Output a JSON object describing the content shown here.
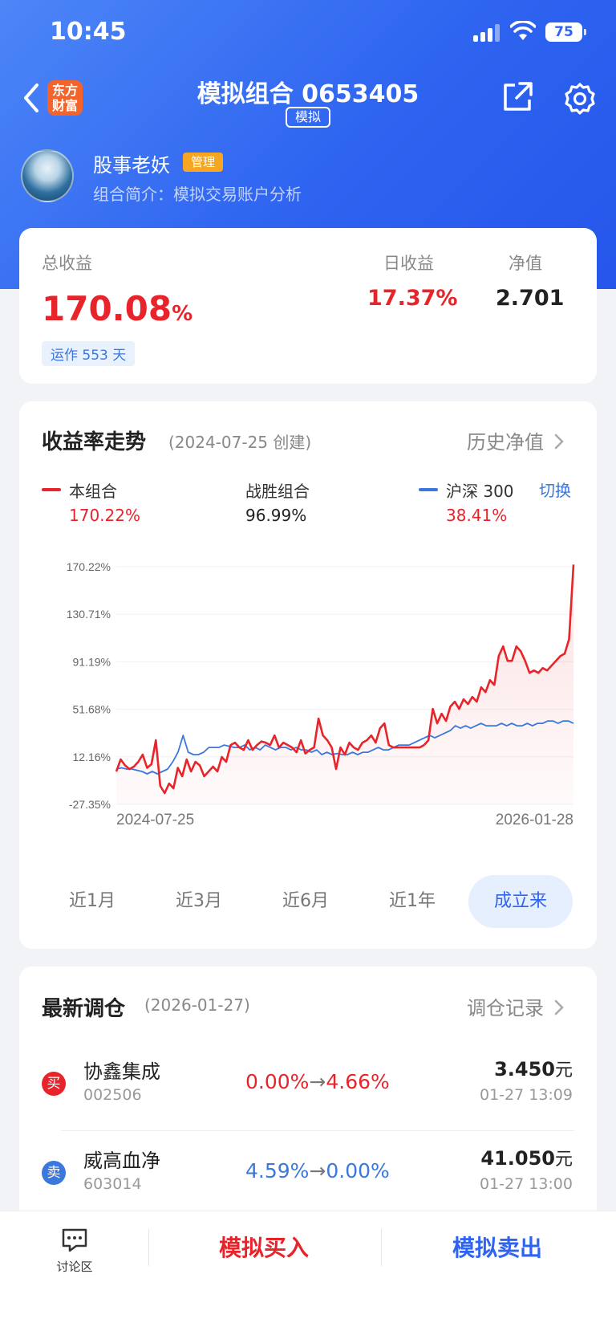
{
  "status_bar": {
    "time": "10:45",
    "battery": "75"
  },
  "nav": {
    "logo_line1": "东方",
    "logo_line2": "财富",
    "title": "模拟组合 0653405",
    "badge": "模拟"
  },
  "user": {
    "name": "股事老妖",
    "role_tag": "管理",
    "desc": "组合简介：模拟交易账户分析"
  },
  "summary": {
    "total_label": "总收益",
    "total_value": "170.08",
    "total_unit": "%",
    "run_days": "运作 553 天",
    "daily_label": "日收益",
    "daily_value": "17.37%",
    "nav_label": "净值",
    "nav_value": "2.701"
  },
  "trend": {
    "title": "收益率走势",
    "created": "(2024-07-25 创建)",
    "history_link": "历史净值",
    "switch": "切换",
    "legend": [
      {
        "name": "本组合",
        "value": "170.22%",
        "color": "#e8242b"
      },
      {
        "name": "战胜组合",
        "value": "96.99%",
        "color": "#222222"
      },
      {
        "name": "沪深 300",
        "value": "38.41%",
        "color": "#e8242b",
        "line_color": "#3a78dc"
      }
    ],
    "periods": [
      "近1月",
      "近3月",
      "近6月",
      "近1年",
      "成立来"
    ],
    "active_period": "成立来"
  },
  "chart_data": {
    "type": "line",
    "x_start": "2024-07-25",
    "x_end": "2026-01-28",
    "y_ticks": [
      "170.22%",
      "130.71%",
      "91.19%",
      "51.68%",
      "12.16%",
      "-27.35%"
    ],
    "ylim": [
      -27.35,
      170.22
    ],
    "grid": true,
    "series": [
      {
        "name": "本组合",
        "color": "#e8242b",
        "fill": true,
        "values": [
          0,
          10,
          5,
          2,
          4,
          8,
          14,
          3,
          6,
          26,
          -12,
          -18,
          -10,
          -14,
          3,
          -4,
          10,
          0,
          8,
          5,
          -4,
          0,
          4,
          0,
          12,
          8,
          22,
          24,
          20,
          18,
          26,
          18,
          22,
          25,
          24,
          22,
          30,
          20,
          24,
          22,
          20,
          16,
          26,
          15,
          18,
          20,
          44,
          30,
          26,
          20,
          2,
          20,
          14,
          24,
          20,
          18,
          24,
          26,
          30,
          24,
          36,
          40,
          22,
          20,
          20,
          20,
          20,
          20,
          20,
          20,
          22,
          26,
          52,
          40,
          48,
          42,
          54,
          58,
          52,
          60,
          56,
          62,
          58,
          70,
          66,
          76,
          72,
          96,
          104,
          92,
          92,
          104,
          100,
          92,
          82,
          84,
          82,
          86,
          84,
          88,
          92,
          96,
          98,
          110,
          172
        ]
      },
      {
        "name": "沪深 300",
        "color": "#3a78dc",
        "fill": false,
        "values": [
          2,
          3,
          2,
          2,
          1,
          0,
          -2,
          0,
          -2,
          0,
          2,
          8,
          16,
          30,
          16,
          14,
          14,
          16,
          20,
          20,
          20,
          22,
          21,
          20,
          20,
          22,
          18,
          20,
          18,
          22,
          20,
          18,
          20,
          20,
          18,
          20,
          18,
          18,
          16,
          18,
          14,
          16,
          14,
          15,
          14,
          14,
          16,
          14,
          16,
          16,
          18,
          20,
          18,
          18,
          20,
          22,
          22,
          22,
          24,
          26,
          28,
          30,
          28,
          30,
          32,
          34,
          38,
          36,
          38,
          36,
          38,
          40,
          38,
          38,
          38,
          40,
          38,
          40,
          38,
          38,
          40,
          38,
          40,
          40,
          42,
          42,
          40,
          42,
          42,
          40
        ]
      }
    ]
  },
  "trades": {
    "title": "最新调仓",
    "date": "(2026-01-27)",
    "record_link": "调仓记录",
    "items": [
      {
        "action": "买",
        "action_color": "#e8242b",
        "name": "协鑫集成",
        "code": "002506",
        "from": "0.00%",
        "to": "4.66%",
        "chg_color": "#e8242b",
        "price": "3.450",
        "unit": "元",
        "time": "01-27 13:09"
      },
      {
        "action": "卖",
        "action_color": "#3a78dc",
        "name": "威高血净",
        "code": "603014",
        "from": "4.59%",
        "to": "0.00%",
        "chg_color": "#3a78dc",
        "price": "41.050",
        "unit": "元",
        "time": "01-27 13:00"
      }
    ]
  },
  "bottom_bar": {
    "discuss": "讨论区",
    "buy": "模拟买入",
    "sell": "模拟卖出",
    "buy_color": "#e8242b",
    "sell_color": "#2e64f0"
  }
}
